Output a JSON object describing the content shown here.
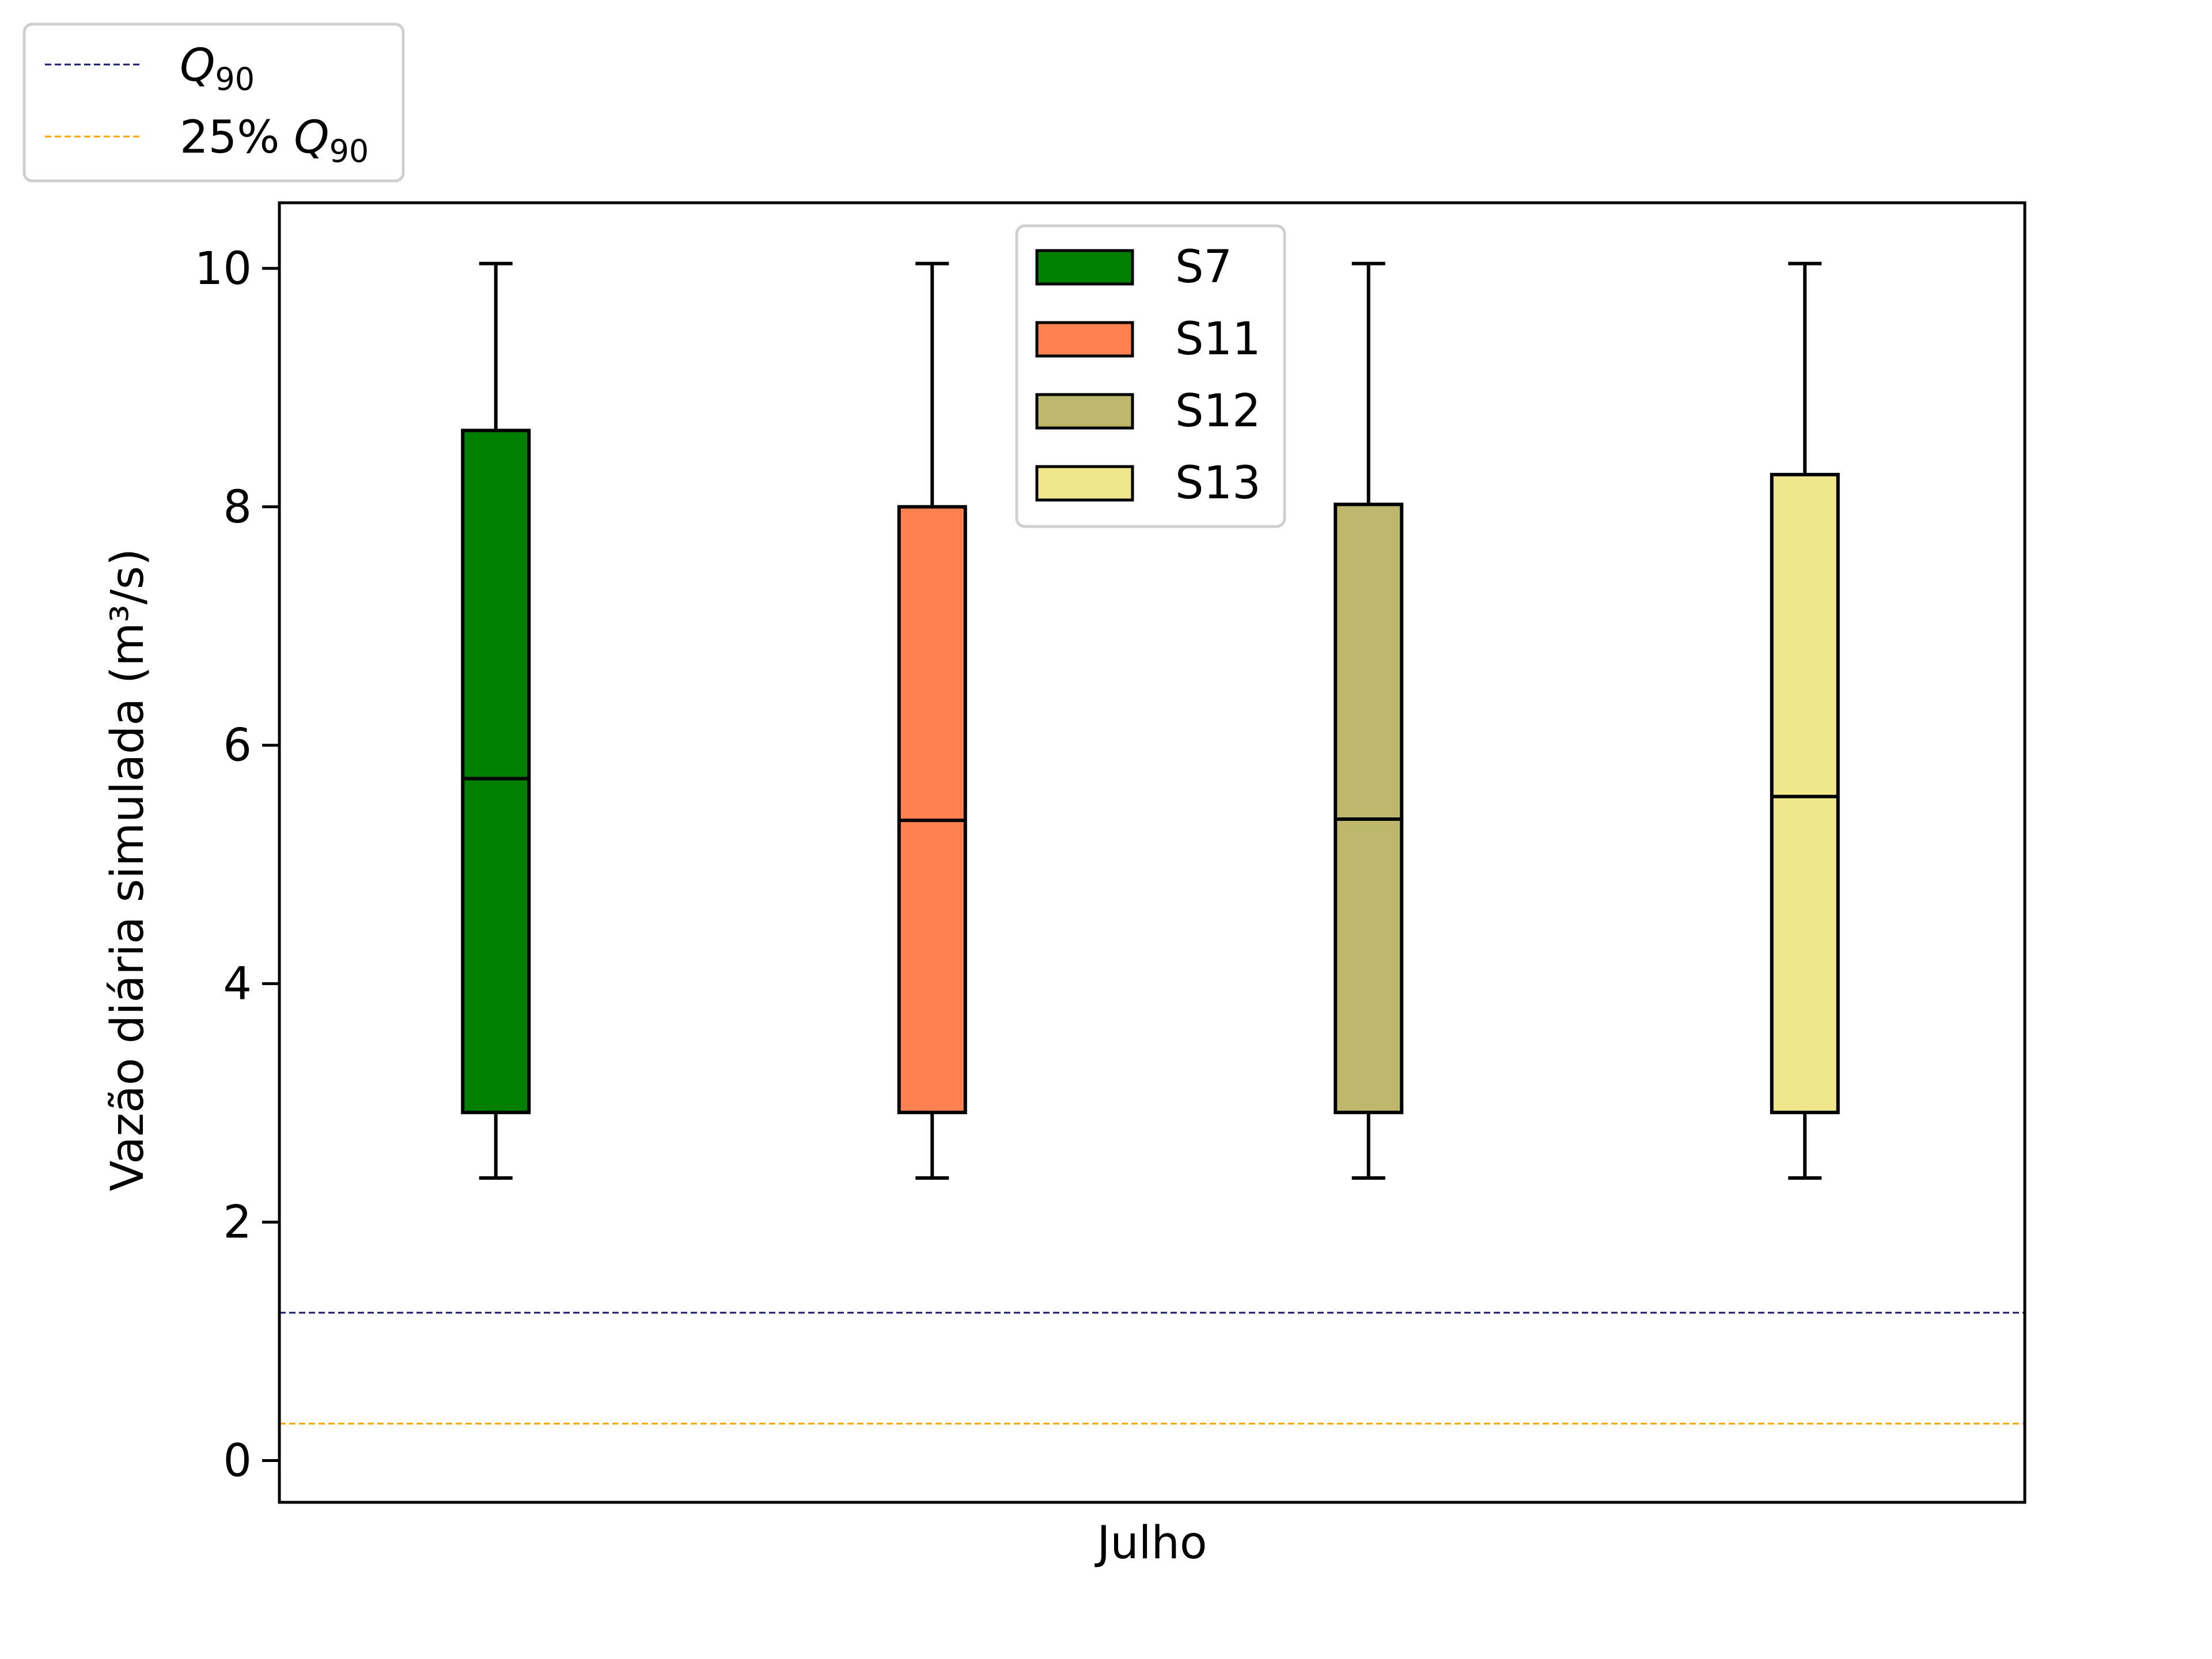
{
  "chart_data": {
    "type": "boxplot",
    "xlabel": "Julho",
    "ylabel": "Vazão diária simulada (m³/s)",
    "ylim": [
      -0.35,
      10.55
    ],
    "yticks": [
      0,
      2,
      4,
      6,
      8,
      10
    ],
    "ytick_labels": [
      "0",
      "2",
      "4",
      "6",
      "8",
      "10"
    ],
    "series": [
      {
        "name": "S7",
        "color": "#008000",
        "whisker_low": 2.37,
        "q1": 2.92,
        "median": 5.72,
        "q3": 8.64,
        "whisker_high": 10.04
      },
      {
        "name": "S11",
        "color": "#ff8050",
        "whisker_low": 2.37,
        "q1": 2.92,
        "median": 5.37,
        "q3": 8.0,
        "whisker_high": 10.04
      },
      {
        "name": "S12",
        "color": "#bdb76b",
        "whisker_low": 2.37,
        "q1": 2.92,
        "median": 5.38,
        "q3": 8.02,
        "whisker_high": 10.04
      },
      {
        "name": "S13",
        "color": "#f0e68c",
        "whisker_low": 2.37,
        "q1": 2.92,
        "median": 5.57,
        "q3": 8.27,
        "whisker_high": 10.04
      }
    ],
    "reference_lines": [
      {
        "label": "Q",
        "label_sub": "90",
        "value": 1.24,
        "color": "#191970",
        "style": "dashed"
      },
      {
        "label": "25% Q",
        "label_sub": "90",
        "value": 0.31,
        "color": "#ffa500",
        "style": "dashed"
      }
    ],
    "legend_series_placement": "upper-center",
    "legend_lines_placement": "outside-top-left",
    "grid": false
  }
}
